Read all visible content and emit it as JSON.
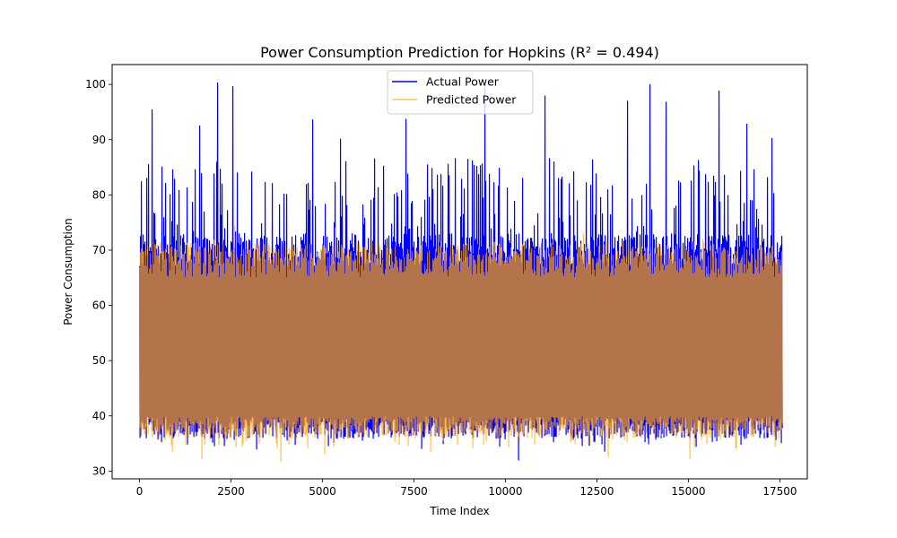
{
  "chart_data": {
    "type": "line",
    "title": "Power Consumption Prediction for Hopkins (R² = 0.494)",
    "xlabel": "Time Index",
    "ylabel": "Power Consumption",
    "xlim": [
      -750,
      18250
    ],
    "ylim": [
      28.6,
      103.6
    ],
    "x_ticks": [
      0,
      2500,
      5000,
      7500,
      10000,
      12500,
      15000,
      17500
    ],
    "y_ticks": [
      30,
      40,
      50,
      60,
      70,
      80,
      90,
      100
    ],
    "x_tick_labels": [
      "0",
      "2500",
      "5000",
      "7500",
      "10000",
      "12500",
      "15000",
      "17500"
    ],
    "y_tick_labels": [
      "30",
      "40",
      "50",
      "60",
      "70",
      "80",
      "90",
      "100"
    ],
    "grid": false,
    "legend_position": "top-center",
    "n_points": 17544,
    "series": [
      {
        "name": "Actual Power",
        "color": "#0000ff",
        "opacity": 1.0,
        "typical_range": [
          38,
          70
        ],
        "observed_min": 32.0,
        "observed_max": 100.3,
        "peaks": [
          [
            2150,
            100.3
          ],
          [
            2550,
            99.6
          ],
          [
            1650,
            92.5
          ],
          [
            350,
            95.4
          ],
          [
            4750,
            93.6
          ],
          [
            5500,
            90.1
          ],
          [
            7300,
            93.7
          ],
          [
            9450,
            99.4
          ],
          [
            11100,
            97.9
          ],
          [
            13350,
            97.0
          ],
          [
            13950,
            100.0
          ],
          [
            14400,
            96.8
          ],
          [
            15850,
            98.8
          ],
          [
            16600,
            92.8
          ],
          [
            17300,
            90.2
          ]
        ],
        "troughs": [
          [
            10350,
            32.0
          ],
          [
            3200,
            34.0
          ],
          [
            7700,
            34.1
          ],
          [
            9850,
            34.5
          ],
          [
            12700,
            33.6
          ]
        ]
      },
      {
        "name": "Predicted Power",
        "color": "#ffa500",
        "opacity": 0.7,
        "typical_range": [
          38,
          68
        ],
        "observed_min": 31.7,
        "observed_max": 74.3,
        "peaks": [
          [
            2600,
            74.3
          ],
          [
            5350,
            74.0
          ],
          [
            12150,
            72.9
          ],
          [
            2050,
            71.8
          ],
          [
            15400,
            72.0
          ]
        ],
        "troughs": [
          [
            3850,
            31.7
          ],
          [
            1700,
            32.2
          ],
          [
            5050,
            33.2
          ],
          [
            7950,
            33.5
          ],
          [
            12800,
            32.6
          ],
          [
            15050,
            32.2
          ],
          [
            900,
            33.5
          ],
          [
            16300,
            34.1
          ]
        ]
      }
    ]
  }
}
